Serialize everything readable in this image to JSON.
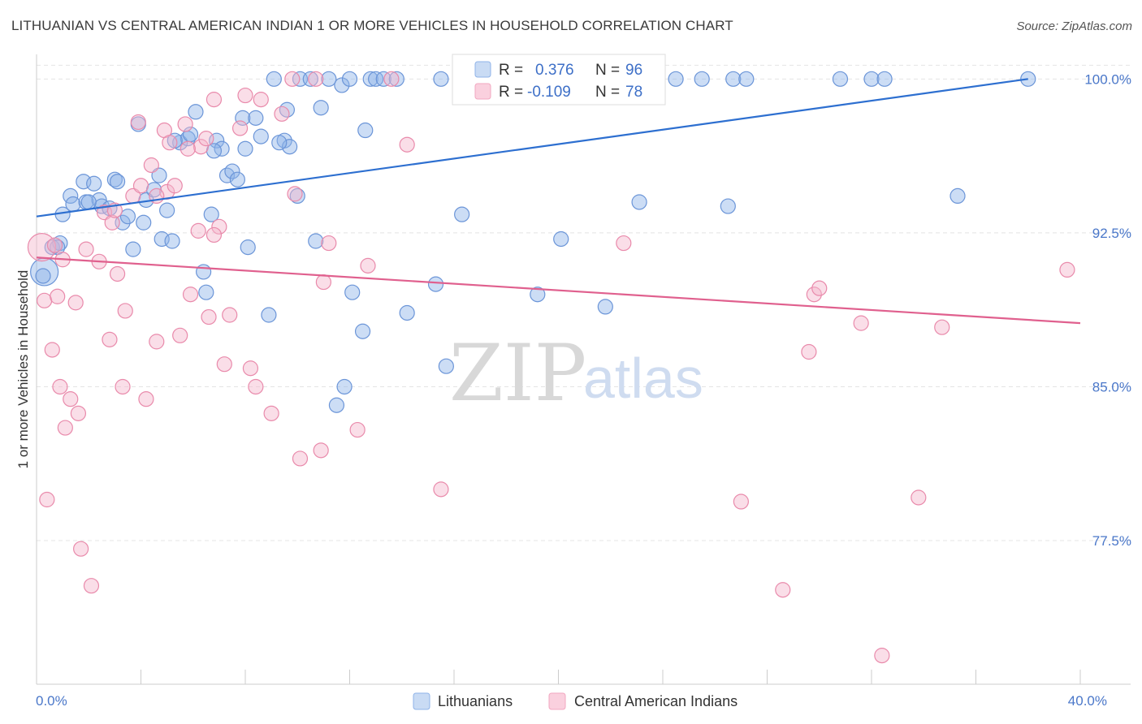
{
  "title": "LITHUANIAN VS CENTRAL AMERICAN INDIAN 1 OR MORE VEHICLES IN HOUSEHOLD CORRELATION CHART",
  "source": "Source: ZipAtlas.com",
  "watermark": {
    "zip": "ZIP",
    "atlas": "atlas"
  },
  "legend_box": {
    "rows": [
      {
        "r_label": "R =",
        "r_value": "0.376",
        "n_label": "N =",
        "n_value": "96",
        "color": "#8fb3e8"
      },
      {
        "r_label": "R =",
        "r_value": "-0.109",
        "n_label": "N =",
        "n_value": "78",
        "color": "#f2a7c0"
      }
    ]
  },
  "chart_data": {
    "type": "scatter",
    "title": "LITHUANIAN VS CENTRAL AMERICAN INDIAN 1 OR MORE VEHICLES IN HOUSEHOLD CORRELATION CHART",
    "xlabel": "",
    "ylabel": "1 or more Vehicles in Household",
    "xlim": [
      0,
      40
    ],
    "ylim": [
      70.5,
      101.2
    ],
    "x_tick_labels": [
      {
        "value": 0,
        "label": "0.0%"
      },
      {
        "value": 40,
        "label": "40.0%"
      }
    ],
    "y_tick_labels": [
      {
        "value": 100,
        "label": "100.0%"
      },
      {
        "value": 92.5,
        "label": "92.5%"
      },
      {
        "value": 85,
        "label": "85.0%"
      },
      {
        "value": 77.5,
        "label": "77.5%"
      }
    ],
    "grid": true,
    "legend_position": "bottom",
    "series": [
      {
        "name": "Lithuanians",
        "color": "#8fb3e8",
        "stroke": "#6b95d8",
        "trend": {
          "x": [
            0,
            38
          ],
          "y": [
            93.3,
            100.0
          ],
          "color": "#2d6fd0"
        },
        "points": [
          [
            0.3,
            90.6
          ],
          [
            0.6,
            91.8
          ],
          [
            0.9,
            92.0
          ],
          [
            1.0,
            93.4
          ],
          [
            1.3,
            94.3
          ],
          [
            1.4,
            93.9
          ],
          [
            1.8,
            95.0
          ],
          [
            1.9,
            94.0
          ],
          [
            2.2,
            94.9
          ],
          [
            2.4,
            94.1
          ],
          [
            2.5,
            93.8
          ],
          [
            2.8,
            93.7
          ],
          [
            3.0,
            95.1
          ],
          [
            3.1,
            95.0
          ],
          [
            3.3,
            93.0
          ],
          [
            3.5,
            93.3
          ],
          [
            3.7,
            91.7
          ],
          [
            3.9,
            97.8
          ],
          [
            4.1,
            93.0
          ],
          [
            4.2,
            94.1
          ],
          [
            4.5,
            94.6
          ],
          [
            4.7,
            95.3
          ],
          [
            4.8,
            92.2
          ],
          [
            5.0,
            93.6
          ],
          [
            5.2,
            92.1
          ],
          [
            5.5,
            96.9
          ],
          [
            5.8,
            97.1
          ],
          [
            5.9,
            97.3
          ],
          [
            6.1,
            98.4
          ],
          [
            6.4,
            90.6
          ],
          [
            6.5,
            89.6
          ],
          [
            6.7,
            93.4
          ],
          [
            6.9,
            97.0
          ],
          [
            7.1,
            96.6
          ],
          [
            7.3,
            95.3
          ],
          [
            7.5,
            95.5
          ],
          [
            7.7,
            95.1
          ],
          [
            7.9,
            98.1
          ],
          [
            8.0,
            96.6
          ],
          [
            8.1,
            91.8
          ],
          [
            8.4,
            98.1
          ],
          [
            8.6,
            97.2
          ],
          [
            8.9,
            88.5
          ],
          [
            9.1,
            100.0
          ],
          [
            9.5,
            97.0
          ],
          [
            9.6,
            98.5
          ],
          [
            9.7,
            96.7
          ],
          [
            10.0,
            94.3
          ],
          [
            10.1,
            100.0
          ],
          [
            10.5,
            100.0
          ],
          [
            10.7,
            92.1
          ],
          [
            10.9,
            98.6
          ],
          [
            11.2,
            100.0
          ],
          [
            11.5,
            84.1
          ],
          [
            11.7,
            99.7
          ],
          [
            11.8,
            85.0
          ],
          [
            12.1,
            89.6
          ],
          [
            12.5,
            87.7
          ],
          [
            12.6,
            97.5
          ],
          [
            12.8,
            100.0
          ],
          [
            13.0,
            100.0
          ],
          [
            13.3,
            100.0
          ],
          [
            13.8,
            100.0
          ],
          [
            14.2,
            88.6
          ],
          [
            15.3,
            90.0
          ],
          [
            15.5,
            100.0
          ],
          [
            15.7,
            86.0
          ],
          [
            16.3,
            93.4
          ],
          [
            16.6,
            100.0
          ],
          [
            17.3,
            100.0
          ],
          [
            17.5,
            100.0
          ],
          [
            17.9,
            100.0
          ],
          [
            18.5,
            100.0
          ],
          [
            19.2,
            89.5
          ],
          [
            20.1,
            92.2
          ],
          [
            21.0,
            100.0
          ],
          [
            21.8,
            88.9
          ],
          [
            22.4,
            100.0
          ],
          [
            23.1,
            94.0
          ],
          [
            24.5,
            100.0
          ],
          [
            25.5,
            100.0
          ],
          [
            26.5,
            93.8
          ],
          [
            26.7,
            100.0
          ],
          [
            27.2,
            100.0
          ],
          [
            30.8,
            100.0
          ],
          [
            32.0,
            100.0
          ],
          [
            32.5,
            100.0
          ],
          [
            35.3,
            94.3
          ],
          [
            38.0,
            100.0
          ],
          [
            0.25,
            90.4
          ],
          [
            2.0,
            94.0
          ],
          [
            5.3,
            97.0
          ],
          [
            6.8,
            96.5
          ],
          [
            9.3,
            96.9
          ],
          [
            12.0,
            100.0
          ],
          [
            0.8,
            91.8
          ]
        ],
        "sizes": {
          "large_point_index": 0
        }
      },
      {
        "name": "Central American Indians",
        "color": "#f5b6cb",
        "stroke": "#e98aab",
        "trend": {
          "x": [
            0,
            40
          ],
          "y": [
            91.3,
            88.1
          ],
          "color": "#e0608e"
        },
        "points": [
          [
            0.2,
            91.8
          ],
          [
            0.3,
            89.2
          ],
          [
            0.4,
            79.5
          ],
          [
            0.6,
            86.8
          ],
          [
            0.8,
            89.4
          ],
          [
            0.9,
            85.0
          ],
          [
            1.1,
            83.0
          ],
          [
            1.3,
            84.4
          ],
          [
            1.5,
            89.1
          ],
          [
            1.6,
            83.7
          ],
          [
            1.7,
            77.1
          ],
          [
            1.9,
            91.7
          ],
          [
            2.1,
            75.3
          ],
          [
            2.4,
            91.1
          ],
          [
            2.6,
            93.5
          ],
          [
            2.8,
            87.3
          ],
          [
            2.9,
            93.0
          ],
          [
            3.1,
            90.5
          ],
          [
            3.3,
            85.0
          ],
          [
            3.4,
            88.7
          ],
          [
            3.7,
            94.3
          ],
          [
            3.9,
            97.9
          ],
          [
            4.0,
            94.8
          ],
          [
            4.2,
            84.4
          ],
          [
            4.4,
            95.8
          ],
          [
            4.6,
            87.2
          ],
          [
            4.9,
            97.5
          ],
          [
            5.0,
            94.5
          ],
          [
            5.1,
            96.9
          ],
          [
            5.3,
            94.8
          ],
          [
            5.5,
            87.5
          ],
          [
            5.7,
            97.8
          ],
          [
            5.9,
            89.5
          ],
          [
            6.2,
            92.6
          ],
          [
            6.3,
            96.7
          ],
          [
            6.5,
            97.1
          ],
          [
            6.6,
            88.4
          ],
          [
            6.8,
            99.0
          ],
          [
            7.0,
            92.8
          ],
          [
            7.2,
            86.1
          ],
          [
            7.4,
            88.5
          ],
          [
            7.8,
            97.6
          ],
          [
            8.0,
            99.2
          ],
          [
            8.2,
            85.9
          ],
          [
            8.4,
            85.0
          ],
          [
            9.0,
            83.7
          ],
          [
            9.4,
            98.3
          ],
          [
            9.8,
            100.0
          ],
          [
            10.1,
            81.5
          ],
          [
            10.7,
            100.0
          ],
          [
            10.9,
            81.9
          ],
          [
            11.0,
            90.1
          ],
          [
            11.2,
            92.0
          ],
          [
            12.3,
            82.9
          ],
          [
            12.7,
            90.9
          ],
          [
            13.6,
            100.0
          ],
          [
            14.2,
            96.8
          ],
          [
            15.5,
            80.0
          ],
          [
            17.0,
            100.0
          ],
          [
            22.5,
            92.0
          ],
          [
            27.0,
            79.4
          ],
          [
            28.6,
            75.1
          ],
          [
            29.6,
            86.7
          ],
          [
            29.8,
            89.5
          ],
          [
            30.0,
            89.8
          ],
          [
            31.6,
            88.1
          ],
          [
            32.4,
            71.9
          ],
          [
            33.8,
            79.6
          ],
          [
            34.7,
            87.9
          ],
          [
            39.5,
            90.7
          ],
          [
            1.0,
            91.2
          ],
          [
            4.6,
            94.3
          ],
          [
            6.8,
            92.4
          ],
          [
            9.9,
            94.4
          ],
          [
            3.0,
            93.6
          ],
          [
            0.7,
            91.9
          ],
          [
            5.8,
            96.6
          ],
          [
            8.6,
            99.0
          ]
        ],
        "sizes": {
          "large_point_index": 0
        }
      }
    ]
  },
  "bottom_legend": [
    {
      "label": "Lithuanians",
      "color": "#8fb3e8"
    },
    {
      "label": "Central American Indians",
      "color": "#f5b6cb"
    }
  ]
}
